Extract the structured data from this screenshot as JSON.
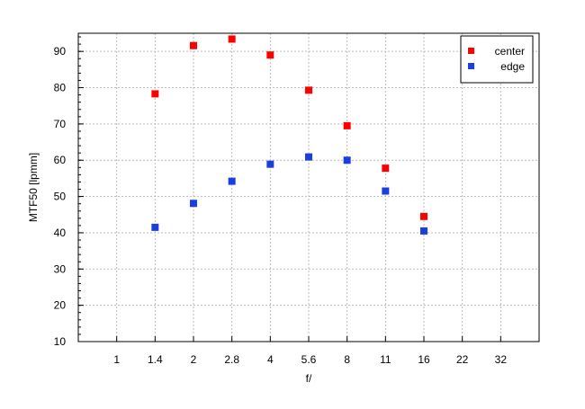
{
  "chart_data": {
    "type": "scatter",
    "title": "",
    "xlabel": "f/",
    "ylabel": "MTF50 [lpmm]",
    "x_categories": [
      "1",
      "1.4",
      "2",
      "2.8",
      "4",
      "5.6",
      "8",
      "11",
      "16",
      "22",
      "32"
    ],
    "x_scale": "log (f-stop steps)",
    "ylim": [
      10,
      95
    ],
    "yticks": [
      10,
      20,
      30,
      40,
      50,
      60,
      70,
      80,
      90
    ],
    "grid": true,
    "legend_position": "top-right",
    "series": [
      {
        "name": "center",
        "color": "#ff0000",
        "x": [
          "1.4",
          "2",
          "2.8",
          "4",
          "5.6",
          "8",
          "11",
          "16"
        ],
        "values": [
          78.3,
          91.6,
          93.4,
          89.0,
          79.3,
          69.5,
          57.8,
          44.5
        ]
      },
      {
        "name": "edge",
        "color": "#1a3fe0",
        "x": [
          "1.4",
          "2",
          "2.8",
          "4",
          "5.6",
          "8",
          "11",
          "16"
        ],
        "values": [
          41.5,
          48.1,
          54.2,
          58.9,
          60.9,
          60.0,
          51.5,
          40.5
        ]
      }
    ]
  }
}
